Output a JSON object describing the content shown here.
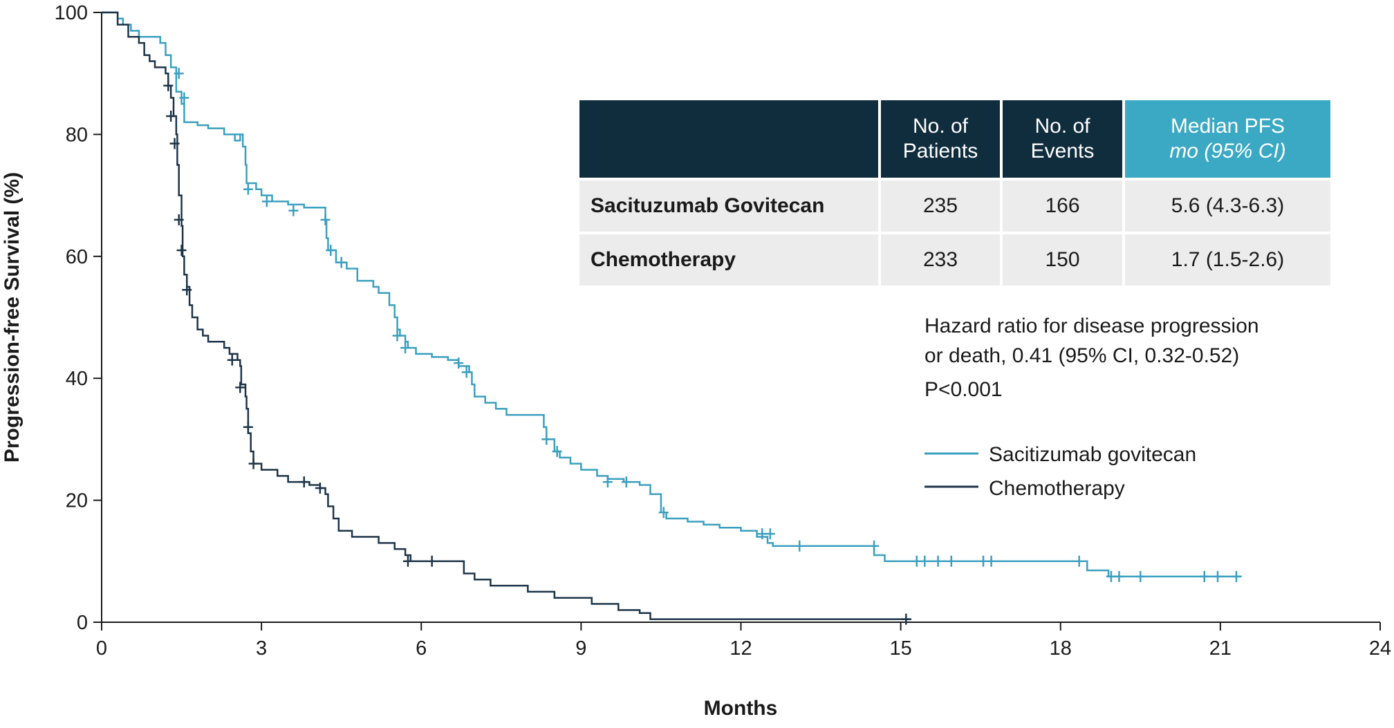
{
  "chart_data": {
    "type": "line",
    "title": "",
    "xlabel": "Months",
    "ylabel": "Progression-free Survival (%)",
    "xlim": [
      0,
      24
    ],
    "ylim": [
      0,
      100
    ],
    "x_ticks": [
      "0",
      "3",
      "6",
      "9",
      "12",
      "15",
      "18",
      "21",
      "24"
    ],
    "y_ticks": [
      "0",
      "20",
      "40",
      "60",
      "80",
      "100"
    ],
    "grid": false,
    "legend_position": "right",
    "series": [
      {
        "name": "Sacitizumab govitecan",
        "color": "#3a9fbf",
        "steps": [
          [
            0,
            100
          ],
          [
            0.3,
            99
          ],
          [
            0.4,
            98
          ],
          [
            0.55,
            97
          ],
          [
            0.7,
            96
          ],
          [
            0.9,
            96
          ],
          [
            1.1,
            95
          ],
          [
            1.2,
            93
          ],
          [
            1.3,
            91
          ],
          [
            1.4,
            87
          ],
          [
            1.5,
            85
          ],
          [
            1.55,
            82
          ],
          [
            1.8,
            81.5
          ],
          [
            2.0,
            81
          ],
          [
            2.3,
            80
          ],
          [
            2.6,
            79
          ],
          [
            2.5,
            80
          ],
          [
            2.65,
            78
          ],
          [
            2.7,
            75
          ],
          [
            2.72,
            72
          ],
          [
            2.9,
            71
          ],
          [
            3.0,
            70
          ],
          [
            3.2,
            69
          ],
          [
            3.5,
            68.5
          ],
          [
            3.8,
            68
          ],
          [
            4.2,
            66
          ],
          [
            4.22,
            63
          ],
          [
            4.25,
            61
          ],
          [
            4.4,
            59
          ],
          [
            4.6,
            58
          ],
          [
            4.8,
            56
          ],
          [
            5.1,
            55
          ],
          [
            5.2,
            54
          ],
          [
            5.4,
            52
          ],
          [
            5.5,
            50
          ],
          [
            5.55,
            48
          ],
          [
            5.6,
            47
          ],
          [
            5.7,
            46
          ],
          [
            5.75,
            45
          ],
          [
            5.9,
            44
          ],
          [
            6.2,
            43.5
          ],
          [
            6.5,
            43
          ],
          [
            6.7,
            42
          ],
          [
            6.9,
            41
          ],
          [
            6.95,
            39
          ],
          [
            7.0,
            37
          ],
          [
            7.2,
            36
          ],
          [
            7.4,
            35
          ],
          [
            7.6,
            34
          ],
          [
            8.0,
            34
          ],
          [
            8.3,
            32
          ],
          [
            8.35,
            30
          ],
          [
            8.5,
            28
          ],
          [
            8.6,
            27
          ],
          [
            8.8,
            26
          ],
          [
            9.0,
            25
          ],
          [
            9.3,
            24
          ],
          [
            9.5,
            23.5
          ],
          [
            9.8,
            23
          ],
          [
            10.1,
            22.5
          ],
          [
            10.3,
            21
          ],
          [
            10.5,
            18
          ],
          [
            10.6,
            17
          ],
          [
            11.0,
            16.5
          ],
          [
            11.3,
            16
          ],
          [
            11.6,
            15.5
          ],
          [
            12.0,
            15
          ],
          [
            12.3,
            14
          ],
          [
            12.5,
            13
          ],
          [
            12.6,
            12.5
          ],
          [
            13.0,
            12.5
          ],
          [
            14.5,
            11
          ],
          [
            14.7,
            10
          ],
          [
            14.9,
            10
          ],
          [
            18.4,
            10
          ],
          [
            18.5,
            8.5
          ],
          [
            18.9,
            7.5
          ],
          [
            21.4,
            7.5
          ]
        ],
        "censors": [
          [
            1.45,
            90
          ],
          [
            1.55,
            86
          ],
          [
            2.75,
            71
          ],
          [
            3.1,
            69
          ],
          [
            3.6,
            67.5
          ],
          [
            4.2,
            66
          ],
          [
            4.3,
            61
          ],
          [
            4.5,
            59
          ],
          [
            5.55,
            47
          ],
          [
            5.7,
            45
          ],
          [
            6.7,
            42.5
          ],
          [
            6.85,
            41
          ],
          [
            8.35,
            30
          ],
          [
            8.55,
            28
          ],
          [
            9.5,
            23
          ],
          [
            9.85,
            23
          ],
          [
            10.55,
            18
          ],
          [
            12.4,
            14.5
          ],
          [
            12.55,
            14.5
          ],
          [
            13.1,
            12.5
          ],
          [
            14.5,
            12.5
          ],
          [
            15.3,
            10
          ],
          [
            15.45,
            10
          ],
          [
            15.7,
            10
          ],
          [
            15.95,
            10
          ],
          [
            16.55,
            10
          ],
          [
            16.7,
            10
          ],
          [
            18.35,
            10
          ],
          [
            18.95,
            7.5
          ],
          [
            19.1,
            7.5
          ],
          [
            19.5,
            7.5
          ],
          [
            20.7,
            7.5
          ],
          [
            20.95,
            7.5
          ],
          [
            21.3,
            7.5
          ]
        ]
      },
      {
        "name": "Chemotherapy",
        "color": "#1c3448",
        "steps": [
          [
            0,
            100
          ],
          [
            0.3,
            98
          ],
          [
            0.5,
            96
          ],
          [
            0.7,
            95
          ],
          [
            0.8,
            93
          ],
          [
            0.9,
            92
          ],
          [
            1.0,
            91
          ],
          [
            1.2,
            90
          ],
          [
            1.25,
            88
          ],
          [
            1.3,
            86
          ],
          [
            1.35,
            83
          ],
          [
            1.4,
            80
          ],
          [
            1.42,
            75
          ],
          [
            1.45,
            70
          ],
          [
            1.5,
            65
          ],
          [
            1.52,
            60
          ],
          [
            1.55,
            57
          ],
          [
            1.6,
            55
          ],
          [
            1.65,
            52
          ],
          [
            1.7,
            50
          ],
          [
            1.8,
            48
          ],
          [
            1.9,
            47
          ],
          [
            2.0,
            46
          ],
          [
            2.3,
            45
          ],
          [
            2.4,
            44
          ],
          [
            2.55,
            43
          ],
          [
            2.6,
            42
          ],
          [
            2.62,
            39
          ],
          [
            2.7,
            37
          ],
          [
            2.72,
            35
          ],
          [
            2.75,
            31
          ],
          [
            2.8,
            28
          ],
          [
            2.85,
            26
          ],
          [
            3.0,
            25
          ],
          [
            3.3,
            24
          ],
          [
            3.5,
            23
          ],
          [
            3.9,
            22.5
          ],
          [
            4.1,
            22
          ],
          [
            4.2,
            21
          ],
          [
            4.25,
            19
          ],
          [
            4.35,
            17
          ],
          [
            4.45,
            15
          ],
          [
            4.7,
            14
          ],
          [
            5.2,
            13
          ],
          [
            5.5,
            12
          ],
          [
            5.7,
            11
          ],
          [
            5.8,
            10
          ],
          [
            6.3,
            10
          ],
          [
            6.8,
            8
          ],
          [
            7.0,
            7
          ],
          [
            7.3,
            6
          ],
          [
            8.0,
            5
          ],
          [
            8.5,
            4
          ],
          [
            9.2,
            3
          ],
          [
            9.7,
            2
          ],
          [
            10.1,
            1.5
          ],
          [
            10.3,
            0.5
          ],
          [
            15.2,
            0.5
          ]
        ],
        "censors": [
          [
            1.25,
            88
          ],
          [
            1.3,
            83
          ],
          [
            1.37,
            78.5
          ],
          [
            1.45,
            66
          ],
          [
            1.5,
            61
          ],
          [
            1.6,
            54.5
          ],
          [
            2.45,
            43
          ],
          [
            2.6,
            38.5
          ],
          [
            2.75,
            32
          ],
          [
            2.85,
            26
          ],
          [
            3.8,
            23
          ],
          [
            4.1,
            22
          ],
          [
            5.75,
            10
          ],
          [
            6.2,
            10
          ],
          [
            15.1,
            0.5
          ]
        ]
      }
    ]
  },
  "table": {
    "headers": {
      "patients_line1": "No. of",
      "patients_line2": "Patients",
      "events_line1": "No. of",
      "events_line2": "Events",
      "pfs_line1": "Median PFS",
      "pfs_line2": "mo (95% CI)"
    },
    "rows": [
      {
        "arm": "Sacituzumab Govitecan",
        "patients": "235",
        "events": "166",
        "median_pfs": "5.6 (4.3-6.3)"
      },
      {
        "arm": "Chemotherapy",
        "patients": "233",
        "events": "150",
        "median_pfs": "1.7 (1.5-2.6)"
      }
    ],
    "header_color": "#102d3e",
    "highlight_color": "#3ba9c4"
  },
  "annotation": {
    "line1": "Hazard ratio for disease progression",
    "line2": "or death, 0.41 (95% CI, 0.32-0.52)",
    "line3": "P<0.001"
  },
  "legend": {
    "items": [
      {
        "label": "Sacitizumab govitecan",
        "color": "#3a9fbf"
      },
      {
        "label": "Chemotherapy",
        "color": "#1c3448"
      }
    ]
  }
}
